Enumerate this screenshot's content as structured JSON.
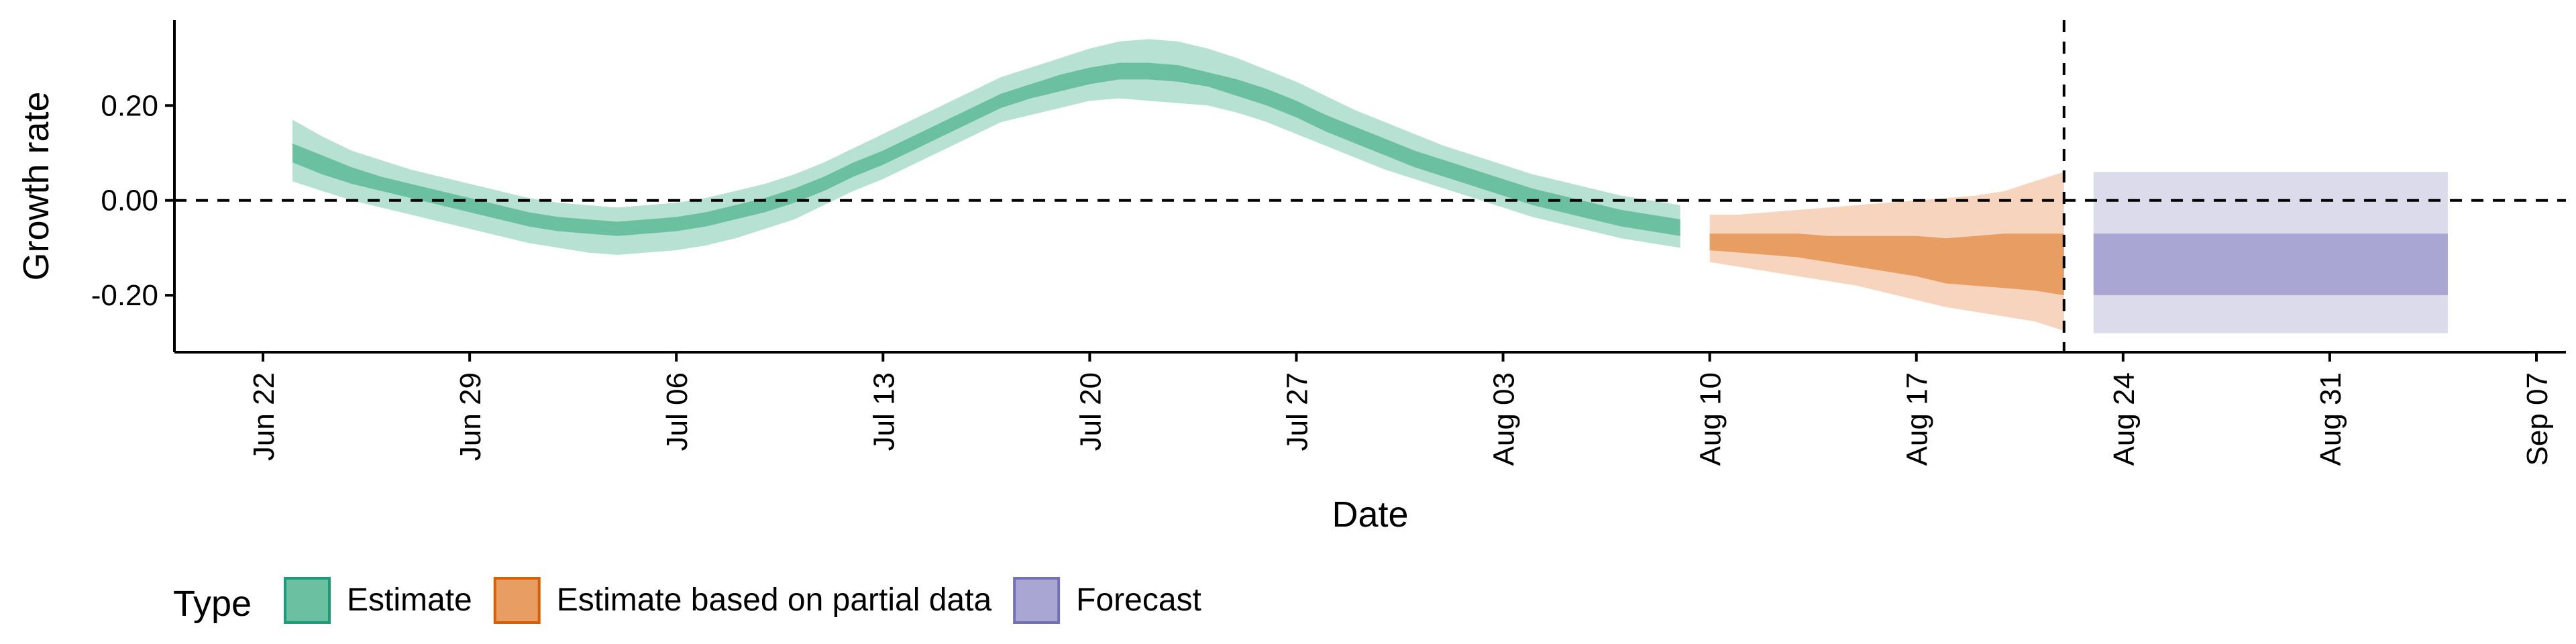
{
  "chart_data": {
    "type": "area",
    "xlabel": "Date",
    "ylabel": "Growth rate",
    "ylim": [
      -0.32,
      0.38
    ],
    "xlim": [
      "2020-06-19",
      "2020-09-08"
    ],
    "y_ticks": [
      0.2,
      0.0,
      -0.2
    ],
    "y_tick_labels": [
      "0.20",
      "0.00",
      "-0.20"
    ],
    "x_ticks": [
      "2020-06-22",
      "2020-06-29",
      "2020-07-06",
      "2020-07-13",
      "2020-07-20",
      "2020-07-27",
      "2020-08-03",
      "2020-08-10",
      "2020-08-17",
      "2020-08-24",
      "2020-08-31",
      "2020-09-07"
    ],
    "x_tick_labels": [
      "Jun 22",
      "Jun 29",
      "Jul 06",
      "Jul 13",
      "Jul 20",
      "Jul 27",
      "Aug 03",
      "Aug 10",
      "Aug 17",
      "Aug 24",
      "Aug 31",
      "Sep 07"
    ],
    "hline": 0.0,
    "vline": "2020-08-22",
    "legend_title": "Type",
    "legend_position": "bottom",
    "series": [
      {
        "name": "Estimate",
        "color": "#1b9e77",
        "fill_outer": "#b6e1d3",
        "fill_inner": "#6cc0a2",
        "x": [
          "2020-06-23",
          "2020-06-24",
          "2020-06-25",
          "2020-06-26",
          "2020-06-27",
          "2020-06-28",
          "2020-06-29",
          "2020-06-30",
          "2020-07-01",
          "2020-07-02",
          "2020-07-03",
          "2020-07-04",
          "2020-07-05",
          "2020-07-06",
          "2020-07-07",
          "2020-07-08",
          "2020-07-09",
          "2020-07-10",
          "2020-07-11",
          "2020-07-12",
          "2020-07-13",
          "2020-07-14",
          "2020-07-15",
          "2020-07-16",
          "2020-07-17",
          "2020-07-18",
          "2020-07-19",
          "2020-07-20",
          "2020-07-21",
          "2020-07-22",
          "2020-07-23",
          "2020-07-24",
          "2020-07-25",
          "2020-07-26",
          "2020-07-27",
          "2020-07-28",
          "2020-07-29",
          "2020-07-30",
          "2020-07-31",
          "2020-08-01",
          "2020-08-02",
          "2020-08-03",
          "2020-08-04",
          "2020-08-05",
          "2020-08-06",
          "2020-08-07",
          "2020-08-08",
          "2020-08-09"
        ],
        "lower_90": [
          0.04,
          0.02,
          0.0,
          -0.015,
          -0.03,
          -0.045,
          -0.06,
          -0.075,
          -0.09,
          -0.1,
          -0.11,
          -0.115,
          -0.11,
          -0.105,
          -0.095,
          -0.08,
          -0.06,
          -0.04,
          -0.01,
          0.02,
          0.045,
          0.075,
          0.105,
          0.135,
          0.165,
          0.18,
          0.195,
          0.21,
          0.215,
          0.21,
          0.205,
          0.2,
          0.185,
          0.165,
          0.14,
          0.115,
          0.09,
          0.065,
          0.045,
          0.025,
          0.005,
          -0.015,
          -0.035,
          -0.05,
          -0.065,
          -0.08,
          -0.09,
          -0.1
        ],
        "lower_50": [
          0.08,
          0.055,
          0.035,
          0.02,
          0.005,
          -0.01,
          -0.025,
          -0.04,
          -0.055,
          -0.065,
          -0.07,
          -0.075,
          -0.07,
          -0.065,
          -0.055,
          -0.04,
          -0.025,
          -0.005,
          0.02,
          0.05,
          0.075,
          0.105,
          0.135,
          0.165,
          0.195,
          0.215,
          0.23,
          0.245,
          0.255,
          0.255,
          0.25,
          0.24,
          0.22,
          0.2,
          0.175,
          0.145,
          0.12,
          0.095,
          0.07,
          0.05,
          0.03,
          0.01,
          -0.01,
          -0.025,
          -0.04,
          -0.055,
          -0.065,
          -0.075
        ],
        "upper_50": [
          0.12,
          0.095,
          0.07,
          0.05,
          0.035,
          0.02,
          0.005,
          -0.01,
          -0.025,
          -0.035,
          -0.04,
          -0.045,
          -0.04,
          -0.035,
          -0.025,
          -0.01,
          0.005,
          0.025,
          0.05,
          0.08,
          0.105,
          0.135,
          0.165,
          0.195,
          0.225,
          0.245,
          0.265,
          0.28,
          0.29,
          0.29,
          0.285,
          0.27,
          0.255,
          0.235,
          0.21,
          0.18,
          0.155,
          0.13,
          0.105,
          0.085,
          0.065,
          0.045,
          0.025,
          0.01,
          -0.005,
          -0.02,
          -0.03,
          -0.04
        ],
        "upper_90": [
          0.17,
          0.135,
          0.105,
          0.085,
          0.065,
          0.05,
          0.035,
          0.02,
          0.005,
          -0.005,
          -0.01,
          -0.015,
          -0.01,
          -0.005,
          0.005,
          0.02,
          0.035,
          0.055,
          0.08,
          0.11,
          0.14,
          0.17,
          0.2,
          0.23,
          0.26,
          0.28,
          0.3,
          0.32,
          0.335,
          0.34,
          0.335,
          0.32,
          0.3,
          0.275,
          0.25,
          0.22,
          0.19,
          0.165,
          0.14,
          0.115,
          0.095,
          0.075,
          0.055,
          0.04,
          0.025,
          0.01,
          0.0,
          -0.01
        ]
      },
      {
        "name": "Estimate based on partial data",
        "color": "#d95f02",
        "fill_outer": "#f6d4bd",
        "fill_inner": "#e89d63",
        "x": [
          "2020-08-10",
          "2020-08-11",
          "2020-08-12",
          "2020-08-13",
          "2020-08-14",
          "2020-08-15",
          "2020-08-16",
          "2020-08-17",
          "2020-08-18",
          "2020-08-19",
          "2020-08-20",
          "2020-08-21",
          "2020-08-22"
        ],
        "lower_90": [
          -0.13,
          -0.14,
          -0.15,
          -0.16,
          -0.17,
          -0.18,
          -0.195,
          -0.21,
          -0.225,
          -0.235,
          -0.245,
          -0.255,
          -0.275
        ],
        "lower_50": [
          -0.105,
          -0.11,
          -0.115,
          -0.12,
          -0.13,
          -0.14,
          -0.15,
          -0.16,
          -0.175,
          -0.18,
          -0.185,
          -0.19,
          -0.2
        ],
        "upper_50": [
          -0.07,
          -0.07,
          -0.07,
          -0.07,
          -0.075,
          -0.075,
          -0.075,
          -0.075,
          -0.08,
          -0.075,
          -0.07,
          -0.07,
          -0.07
        ],
        "upper_90": [
          -0.03,
          -0.03,
          -0.025,
          -0.02,
          -0.015,
          -0.01,
          -0.005,
          0.0,
          0.005,
          0.01,
          0.02,
          0.04,
          0.06
        ]
      },
      {
        "name": "Forecast",
        "color": "#7570b3",
        "fill_outer": "#dcdbec",
        "fill_inner": "#a9a6d3",
        "x": [
          "2020-08-23",
          "2020-09-04"
        ],
        "lower_90": [
          -0.28,
          -0.28
        ],
        "lower_50": [
          -0.2,
          -0.2
        ],
        "upper_50": [
          -0.07,
          -0.07
        ],
        "upper_90": [
          0.06,
          0.06
        ]
      }
    ]
  }
}
